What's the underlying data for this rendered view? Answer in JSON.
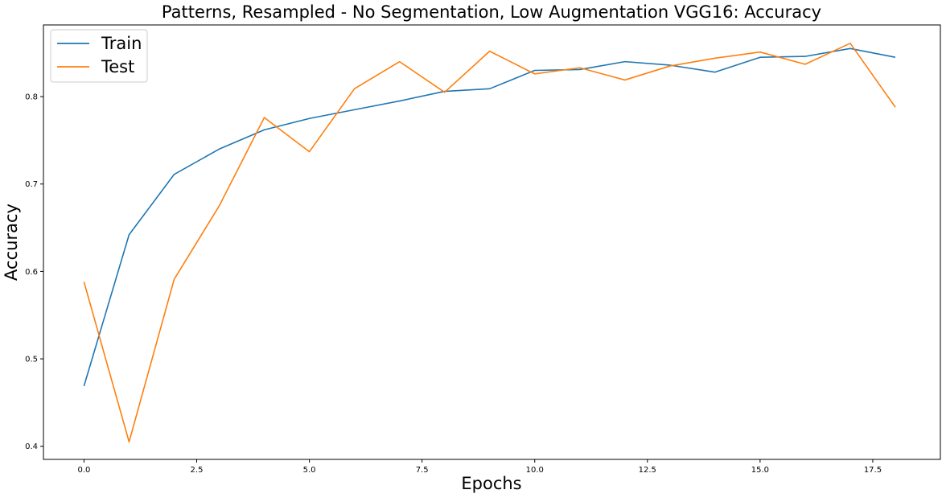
{
  "chart_data": {
    "type": "line",
    "title": "Patterns, Resampled - No Segmentation, Low Augmentation VGG16: Accuracy",
    "xlabel": "Epochs",
    "ylabel": "Accuracy",
    "xlim": [
      -0.9,
      19.0
    ],
    "ylim": [
      0.385,
      0.882
    ],
    "xticks": [
      0.0,
      2.5,
      5.0,
      7.5,
      10.0,
      12.5,
      15.0,
      17.5
    ],
    "xtick_labels": [
      "0.0",
      "2.5",
      "5.0",
      "7.5",
      "10.0",
      "12.5",
      "15.0",
      "17.5"
    ],
    "yticks": [
      0.4,
      0.5,
      0.6,
      0.7,
      0.8
    ],
    "ytick_labels": [
      "0.4",
      "0.5",
      "0.6",
      "0.7",
      "0.8"
    ],
    "grid": false,
    "legend_position": "top-left",
    "x": [
      0,
      1,
      2,
      3,
      4,
      5,
      6,
      7,
      8,
      9,
      10,
      11,
      12,
      13,
      14,
      15,
      16,
      17,
      18
    ],
    "series": [
      {
        "name": "Train",
        "color": "#1f77b4",
        "values": [
          0.469,
          0.642,
          0.711,
          0.74,
          0.762,
          0.775,
          0.785,
          0.795,
          0.806,
          0.809,
          0.83,
          0.831,
          0.84,
          0.836,
          0.828,
          0.845,
          0.846,
          0.855,
          0.845
        ]
      },
      {
        "name": "Test",
        "color": "#ff7f0e",
        "values": [
          0.588,
          0.405,
          0.591,
          0.675,
          0.776,
          0.737,
          0.809,
          0.84,
          0.805,
          0.852,
          0.826,
          0.833,
          0.819,
          0.835,
          0.844,
          0.851,
          0.837,
          0.861,
          0.788
        ]
      }
    ]
  }
}
